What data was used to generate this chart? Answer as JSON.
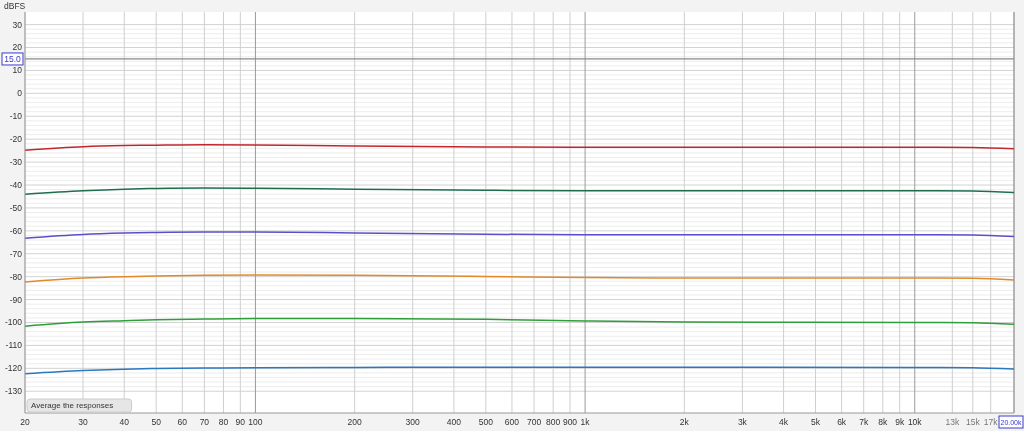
{
  "chart_data": {
    "type": "line",
    "ylabel": "dBFS",
    "log": "x",
    "grid": true,
    "line_style": "solid",
    "xlim": [
      20,
      20000
    ],
    "ylim": [
      -139.5,
      35.5
    ],
    "xticks": [
      20,
      30,
      40,
      50,
      60,
      70,
      80,
      90,
      100,
      200,
      300,
      400,
      500,
      600,
      700,
      800,
      900,
      {
        "value": 1000,
        "label": "1k"
      },
      {
        "value": 2000,
        "label": "2k"
      },
      {
        "value": 3000,
        "label": "3k"
      },
      {
        "value": 4000,
        "label": "4k"
      },
      {
        "value": 5000,
        "label": "5k"
      },
      {
        "value": 6000,
        "label": "6k"
      },
      {
        "value": 7000,
        "label": "7k"
      },
      {
        "value": 8000,
        "label": "8k"
      },
      {
        "value": 9000,
        "label": "9k"
      },
      {
        "value": 10000,
        "label": "10k"
      },
      {
        "value": 13000,
        "label": "13k"
      },
      {
        "value": 15000,
        "label": "15k"
      },
      {
        "value": 17000,
        "label": "17k"
      }
    ],
    "yticks": [
      -130,
      -120,
      -110,
      -100,
      -90,
      -80,
      -70,
      -60,
      -50,
      -40,
      -30,
      -20,
      -10,
      0,
      10,
      20,
      30
    ],
    "x": [
      20,
      30,
      40,
      50,
      70,
      100,
      200,
      500,
      1000,
      2000,
      10000,
      15000,
      20000
    ],
    "series": [
      {
        "color": "#c0272d",
        "values": [
          -24.8,
          -23.3,
          -22.8,
          -22.6,
          -22.4,
          -22.5,
          -23.0,
          -23.4,
          -23.5,
          -23.5,
          -23.5,
          -23.6,
          -24.2
        ]
      },
      {
        "color": "#1e6e4e",
        "values": [
          -44,
          -42.5,
          -41.8,
          -41.5,
          -41.3,
          -41.4,
          -41.8,
          -42.3,
          -42.5,
          -42.5,
          -42.5,
          -42.6,
          -43.3
        ]
      },
      {
        "color": "#5a4fc8",
        "values": [
          -63.2,
          -61.6,
          -61,
          -60.7,
          -60.5,
          -60.5,
          -60.9,
          -61.5,
          -61.7,
          -61.7,
          -61.7,
          -61.8,
          -62.5
        ]
      },
      {
        "color": "#e08a2c",
        "values": [
          -82.3,
          -80.6,
          -80,
          -79.7,
          -79.4,
          -79.3,
          -79.4,
          -79.9,
          -80.4,
          -80.6,
          -80.6,
          -80.7,
          -81.5
        ]
      },
      {
        "color": "#2e9e3a",
        "values": [
          -101.6,
          -99.8,
          -99.2,
          -98.8,
          -98.5,
          -98.3,
          -98.3,
          -98.6,
          -99.3,
          -99.8,
          -100,
          -100.1,
          -100.8
        ]
      },
      {
        "color": "#2a78c0",
        "values": [
          -122.4,
          -121,
          -120.4,
          -120.1,
          -119.9,
          -119.7,
          -119.6,
          -119.5,
          -119.5,
          -119.5,
          -119.6,
          -119.7,
          -120.3
        ]
      }
    ],
    "ref_lines": [
      {
        "axis": "y",
        "value": 15,
        "label": "15.0",
        "color": "#888888"
      },
      {
        "axis": "x",
        "value": 20000,
        "label": "20.00k",
        "color": "#888888"
      }
    ],
    "annotations": [
      "Average the responses"
    ]
  }
}
